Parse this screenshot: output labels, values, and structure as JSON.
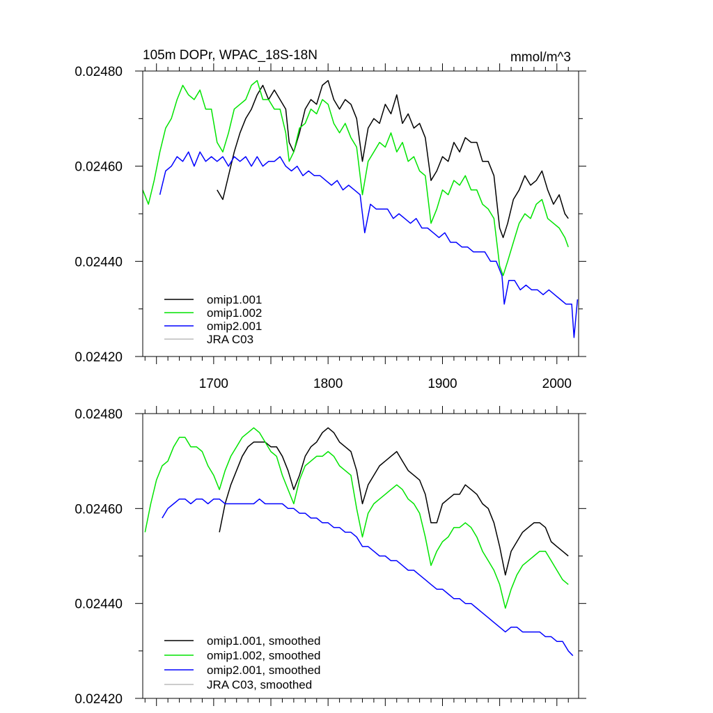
{
  "figure": {
    "title_left": "105m DOPr, WPAC_18S-18N",
    "title_right": "mmol/m^3"
  },
  "chart_data": [
    {
      "type": "line",
      "panel": "top",
      "title": "105m DOPr, WPAC_18S-18N",
      "units": "mmol/m^3",
      "xlim": [
        1638,
        2019
      ],
      "ylim": [
        0.0242,
        0.0248
      ],
      "xticks": [
        1700,
        1800,
        1900,
        2000
      ],
      "xtick_labels": [
        "1700",
        "1800",
        "1900",
        "2000"
      ],
      "yticks": [
        0.0242,
        0.0244,
        0.0246,
        0.0248
      ],
      "ytick_labels": [
        "0.02420",
        "0.02440",
        "0.02460",
        "0.02480"
      ],
      "legend_position": "bottom-left",
      "series": [
        {
          "name": "omip1.001",
          "color": "#000000",
          "x": [
            1703,
            1708,
            1713,
            1718,
            1723,
            1728,
            1733,
            1738,
            1743,
            1748,
            1753,
            1758,
            1763,
            1766,
            1770,
            1775,
            1780,
            1785,
            1790,
            1795,
            1800,
            1805,
            1810,
            1815,
            1820,
            1825,
            1830,
            1835,
            1840,
            1845,
            1850,
            1855,
            1860,
            1865,
            1870,
            1875,
            1880,
            1885,
            1890,
            1895,
            1900,
            1905,
            1910,
            1915,
            1920,
            1925,
            1930,
            1935,
            1940,
            1945,
            1950,
            1953,
            1957,
            1962,
            1967,
            1972,
            1977,
            1982,
            1987,
            1992,
            1997,
            2002,
            2007,
            2010
          ],
          "values": [
            0.02455,
            0.02453,
            0.02458,
            0.02463,
            0.02467,
            0.0247,
            0.02472,
            0.02475,
            0.02477,
            0.02474,
            0.02476,
            0.02474,
            0.02472,
            0.02465,
            0.02463,
            0.02467,
            0.02472,
            0.02474,
            0.02473,
            0.02477,
            0.02478,
            0.02474,
            0.02472,
            0.02474,
            0.02473,
            0.0247,
            0.02461,
            0.02468,
            0.0247,
            0.02469,
            0.02473,
            0.02471,
            0.02475,
            0.02469,
            0.02471,
            0.02468,
            0.02469,
            0.02466,
            0.02457,
            0.02459,
            0.02462,
            0.02461,
            0.02465,
            0.02463,
            0.02466,
            0.02465,
            0.02465,
            0.02461,
            0.02461,
            0.02458,
            0.02447,
            0.02445,
            0.02448,
            0.02453,
            0.02455,
            0.02458,
            0.02456,
            0.02457,
            0.02459,
            0.02455,
            0.02452,
            0.02454,
            0.0245,
            0.02449
          ]
        },
        {
          "name": "omip1.002",
          "color": "#00e400",
          "x": [
            1638,
            1643,
            1648,
            1653,
            1658,
            1663,
            1668,
            1673,
            1678,
            1683,
            1688,
            1693,
            1698,
            1703,
            1708,
            1713,
            1718,
            1723,
            1728,
            1733,
            1738,
            1743,
            1748,
            1753,
            1758,
            1763,
            1766,
            1770,
            1775,
            1780,
            1785,
            1790,
            1795,
            1800,
            1805,
            1810,
            1815,
            1820,
            1825,
            1830,
            1835,
            1840,
            1845,
            1850,
            1855,
            1860,
            1865,
            1870,
            1875,
            1880,
            1885,
            1890,
            1895,
            1900,
            1905,
            1910,
            1915,
            1920,
            1925,
            1930,
            1935,
            1940,
            1945,
            1950,
            1953,
            1957,
            1962,
            1967,
            1972,
            1977,
            1982,
            1987,
            1992,
            1997,
            2002,
            2007,
            2010
          ],
          "values": [
            0.02455,
            0.02452,
            0.02457,
            0.02463,
            0.02468,
            0.0247,
            0.02474,
            0.02477,
            0.02475,
            0.02474,
            0.02476,
            0.02472,
            0.02472,
            0.02465,
            0.02463,
            0.02467,
            0.02472,
            0.02473,
            0.02474,
            0.02477,
            0.02478,
            0.02474,
            0.02474,
            0.02472,
            0.02472,
            0.02467,
            0.02461,
            0.02463,
            0.02468,
            0.02469,
            0.02472,
            0.02471,
            0.02474,
            0.02473,
            0.02469,
            0.02467,
            0.02469,
            0.02466,
            0.02464,
            0.02454,
            0.02461,
            0.02463,
            0.02465,
            0.02464,
            0.02467,
            0.02463,
            0.02465,
            0.02461,
            0.02462,
            0.02459,
            0.02458,
            0.02448,
            0.02451,
            0.02455,
            0.02454,
            0.02457,
            0.02456,
            0.02458,
            0.02455,
            0.02455,
            0.02452,
            0.02451,
            0.02449,
            0.02439,
            0.02437,
            0.0244,
            0.02444,
            0.02448,
            0.0245,
            0.02449,
            0.02452,
            0.02453,
            0.02449,
            0.02448,
            0.02447,
            0.02445,
            0.02443
          ]
        },
        {
          "name": "omip2.001",
          "color": "#0000ff",
          "x": [
            1653,
            1658,
            1663,
            1668,
            1673,
            1678,
            1683,
            1688,
            1693,
            1698,
            1703,
            1708,
            1713,
            1718,
            1723,
            1728,
            1733,
            1738,
            1743,
            1748,
            1753,
            1758,
            1763,
            1768,
            1773,
            1778,
            1783,
            1788,
            1793,
            1798,
            1803,
            1808,
            1813,
            1818,
            1823,
            1828,
            1832,
            1837,
            1842,
            1847,
            1852,
            1857,
            1862,
            1867,
            1872,
            1877,
            1882,
            1887,
            1892,
            1897,
            1902,
            1907,
            1912,
            1917,
            1922,
            1927,
            1932,
            1937,
            1942,
            1947,
            1952,
            1954,
            1958,
            1963,
            1968,
            1973,
            1978,
            1983,
            1988,
            1993,
            1998,
            2003,
            2008,
            2013,
            2015,
            2018
          ],
          "values": [
            0.02454,
            0.02459,
            0.0246,
            0.02462,
            0.02461,
            0.02463,
            0.0246,
            0.02463,
            0.02461,
            0.02462,
            0.02461,
            0.02462,
            0.0246,
            0.02462,
            0.02461,
            0.02462,
            0.0246,
            0.02462,
            0.0246,
            0.02461,
            0.02461,
            0.02462,
            0.0246,
            0.02459,
            0.0246,
            0.02458,
            0.02459,
            0.02458,
            0.02458,
            0.02457,
            0.02456,
            0.02457,
            0.02455,
            0.02456,
            0.02455,
            0.02454,
            0.02446,
            0.02452,
            0.02451,
            0.02451,
            0.02451,
            0.02449,
            0.0245,
            0.02449,
            0.02448,
            0.02449,
            0.02447,
            0.02447,
            0.02446,
            0.02445,
            0.02446,
            0.02444,
            0.02444,
            0.02443,
            0.02443,
            0.02442,
            0.02442,
            0.02442,
            0.0244,
            0.0244,
            0.02437,
            0.02431,
            0.02436,
            0.02436,
            0.02434,
            0.02435,
            0.02434,
            0.02434,
            0.02433,
            0.02434,
            0.02433,
            0.02432,
            0.02431,
            0.02431,
            0.02424,
            0.02432
          ]
        },
        {
          "name": "JRA C03",
          "color": "#bbbbbb",
          "x": [],
          "values": []
        }
      ]
    },
    {
      "type": "line",
      "panel": "bottom",
      "xlim": [
        1638,
        2019
      ],
      "ylim": [
        0.0242,
        0.0248
      ],
      "yticks": [
        0.0242,
        0.0244,
        0.0246,
        0.0248
      ],
      "ytick_labels": [
        "0.02420",
        "0.02440",
        "0.02460",
        "0.02480"
      ],
      "legend_position": "bottom-left",
      "series": [
        {
          "name": "omip1.001, smoothed",
          "color": "#000000",
          "x": [
            1705,
            1710,
            1715,
            1720,
            1725,
            1730,
            1735,
            1740,
            1745,
            1750,
            1755,
            1760,
            1765,
            1770,
            1775,
            1780,
            1785,
            1790,
            1795,
            1800,
            1805,
            1810,
            1815,
            1820,
            1825,
            1830,
            1835,
            1840,
            1845,
            1850,
            1855,
            1860,
            1865,
            1870,
            1875,
            1880,
            1885,
            1890,
            1895,
            1900,
            1905,
            1910,
            1915,
            1920,
            1925,
            1930,
            1935,
            1940,
            1945,
            1950,
            1955,
            1960,
            1965,
            1970,
            1975,
            1980,
            1985,
            1990,
            1995,
            2000,
            2005,
            2010
          ],
          "values": [
            0.02455,
            0.02461,
            0.02465,
            0.02468,
            0.02471,
            0.02473,
            0.02474,
            0.02474,
            0.02474,
            0.02473,
            0.02473,
            0.02471,
            0.02468,
            0.02464,
            0.02467,
            0.02471,
            0.02473,
            0.02474,
            0.02476,
            0.02477,
            0.02476,
            0.02474,
            0.02473,
            0.02472,
            0.02468,
            0.02461,
            0.02465,
            0.02467,
            0.02469,
            0.0247,
            0.02471,
            0.02472,
            0.0247,
            0.02468,
            0.02467,
            0.02466,
            0.02463,
            0.02457,
            0.02457,
            0.02461,
            0.02462,
            0.02463,
            0.02463,
            0.02465,
            0.02464,
            0.02463,
            0.02461,
            0.0246,
            0.02457,
            0.02452,
            0.02446,
            0.02451,
            0.02453,
            0.02455,
            0.02456,
            0.02457,
            0.02457,
            0.02456,
            0.02453,
            0.02452,
            0.02451,
            0.0245
          ]
        },
        {
          "name": "omip1.002, smoothed",
          "color": "#00e400",
          "x": [
            1640,
            1645,
            1650,
            1655,
            1660,
            1665,
            1670,
            1675,
            1680,
            1685,
            1690,
            1695,
            1700,
            1705,
            1710,
            1715,
            1720,
            1725,
            1730,
            1735,
            1740,
            1745,
            1750,
            1755,
            1760,
            1765,
            1770,
            1775,
            1780,
            1785,
            1790,
            1795,
            1800,
            1805,
            1810,
            1815,
            1820,
            1825,
            1830,
            1835,
            1840,
            1845,
            1850,
            1855,
            1860,
            1865,
            1870,
            1875,
            1880,
            1885,
            1890,
            1895,
            1900,
            1905,
            1910,
            1915,
            1920,
            1925,
            1930,
            1935,
            1940,
            1945,
            1950,
            1955,
            1960,
            1965,
            1970,
            1975,
            1980,
            1985,
            1990,
            1995,
            2000,
            2005,
            2010
          ],
          "values": [
            0.02455,
            0.02461,
            0.02466,
            0.02469,
            0.0247,
            0.02473,
            0.02475,
            0.02475,
            0.02473,
            0.02473,
            0.02472,
            0.02469,
            0.02467,
            0.02464,
            0.02468,
            0.02471,
            0.02473,
            0.02475,
            0.02476,
            0.02477,
            0.02476,
            0.02474,
            0.02472,
            0.02471,
            0.02467,
            0.02464,
            0.02461,
            0.02466,
            0.02469,
            0.0247,
            0.02471,
            0.02471,
            0.02472,
            0.02471,
            0.02469,
            0.02468,
            0.02467,
            0.0246,
            0.02454,
            0.02459,
            0.02461,
            0.02462,
            0.02463,
            0.02464,
            0.02465,
            0.02464,
            0.02462,
            0.02461,
            0.02459,
            0.02454,
            0.02448,
            0.02451,
            0.02453,
            0.02454,
            0.02456,
            0.02456,
            0.02457,
            0.02456,
            0.02454,
            0.02451,
            0.02449,
            0.02447,
            0.02444,
            0.02439,
            0.02443,
            0.02446,
            0.02448,
            0.02449,
            0.0245,
            0.02451,
            0.02451,
            0.02449,
            0.02447,
            0.02445,
            0.02444
          ]
        },
        {
          "name": "omip2.001, smoothed",
          "color": "#0000ff",
          "x": [
            1655,
            1660,
            1665,
            1670,
            1675,
            1680,
            1685,
            1690,
            1695,
            1700,
            1705,
            1710,
            1715,
            1720,
            1725,
            1730,
            1735,
            1740,
            1745,
            1750,
            1755,
            1760,
            1765,
            1770,
            1775,
            1780,
            1785,
            1790,
            1795,
            1800,
            1805,
            1810,
            1815,
            1820,
            1825,
            1830,
            1835,
            1840,
            1845,
            1850,
            1855,
            1860,
            1865,
            1870,
            1875,
            1880,
            1885,
            1890,
            1895,
            1900,
            1905,
            1910,
            1915,
            1920,
            1925,
            1930,
            1935,
            1940,
            1945,
            1950,
            1955,
            1960,
            1965,
            1970,
            1975,
            1980,
            1985,
            1990,
            1995,
            2000,
            2005,
            2010,
            2014
          ],
          "values": [
            0.02458,
            0.0246,
            0.02461,
            0.02462,
            0.02462,
            0.02461,
            0.02462,
            0.02462,
            0.02461,
            0.02462,
            0.02462,
            0.02461,
            0.02461,
            0.02461,
            0.02461,
            0.02461,
            0.02461,
            0.02462,
            0.02461,
            0.02461,
            0.02461,
            0.02461,
            0.0246,
            0.0246,
            0.02459,
            0.02459,
            0.02458,
            0.02458,
            0.02457,
            0.02457,
            0.02456,
            0.02456,
            0.02455,
            0.02455,
            0.02454,
            0.02452,
            0.02452,
            0.02451,
            0.0245,
            0.0245,
            0.02449,
            0.02449,
            0.02448,
            0.02447,
            0.02447,
            0.02446,
            0.02445,
            0.02444,
            0.02443,
            0.02443,
            0.02442,
            0.02441,
            0.02441,
            0.0244,
            0.0244,
            0.02439,
            0.02438,
            0.02437,
            0.02436,
            0.02435,
            0.02434,
            0.02435,
            0.02435,
            0.02434,
            0.02434,
            0.02434,
            0.02434,
            0.02433,
            0.02433,
            0.02432,
            0.02432,
            0.0243,
            0.02429
          ]
        },
        {
          "name": "JRA C03, smoothed",
          "color": "#bbbbbb",
          "x": [],
          "values": []
        }
      ]
    }
  ]
}
